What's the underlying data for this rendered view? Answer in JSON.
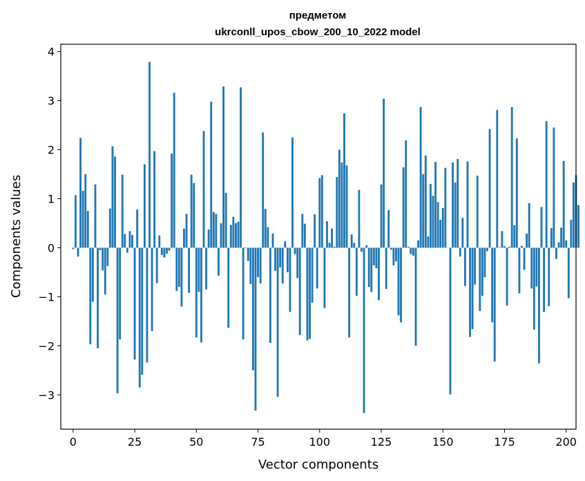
{
  "chart_data": {
    "type": "bar",
    "title": "предметом",
    "subtitle": "ukrconll_upos_cbow_200_10_2022 model",
    "xlabel": "Vector components",
    "ylabel": "Components values",
    "xlim": [
      -5,
      204
    ],
    "ylim": [
      -3.7,
      4.15
    ],
    "xticks": [
      0,
      25,
      50,
      75,
      100,
      125,
      150,
      175,
      200
    ],
    "xtick_labels": [
      "0",
      "25",
      "50",
      "75",
      "100",
      "125",
      "150",
      "175",
      "200"
    ],
    "yticks": [
      -3,
      -2,
      -1,
      0,
      1,
      2,
      3,
      4
    ],
    "ytick_labels": [
      "−3",
      "−2",
      "−1",
      "0",
      "1",
      "2",
      "3",
      "4"
    ],
    "bar_color": "#1f77b4",
    "values": [
      -0.03,
      1.07,
      -0.18,
      2.24,
      1.16,
      1.5,
      0.75,
      -1.97,
      -1.1,
      1.29,
      -2.05,
      -0.05,
      -0.46,
      -0.95,
      -0.37,
      0.8,
      2.07,
      1.86,
      -2.97,
      -1.87,
      1.49,
      0.28,
      -0.1,
      0.34,
      0.26,
      -2.28,
      0.78,
      -2.85,
      -2.59,
      1.7,
      -2.34,
      3.79,
      -1.7,
      1.97,
      -0.72,
      0.25,
      -0.15,
      -0.2,
      -0.12,
      -0.06,
      1.92,
      3.16,
      -0.88,
      -0.8,
      -1.2,
      0.39,
      0.69,
      -0.92,
      1.49,
      1.32,
      -1.83,
      -0.9,
      -1.93,
      2.38,
      -0.85,
      0.37,
      2.98,
      0.73,
      0.69,
      -0.57,
      0.5,
      3.29,
      1.12,
      -1.63,
      0.46,
      0.63,
      0.5,
      0.53,
      3.27,
      -1.87,
      -0.01,
      -0.27,
      -0.74,
      -2.5,
      -3.32,
      -0.6,
      -0.73,
      2.35,
      0.79,
      0.42,
      -1.94,
      0.29,
      -0.47,
      -3.04,
      -0.4,
      -0.73,
      0.13,
      -0.5,
      -1.31,
      2.25,
      -0.13,
      -0.62,
      -1.78,
      0.69,
      0.49,
      -1.89,
      -1.86,
      -1.12,
      0.68,
      -0.83,
      1.42,
      1.48,
      -1.23,
      0.54,
      0.1,
      0.39,
      0.02,
      1.44,
      2.0,
      1.74,
      2.74,
      1.68,
      -1.83,
      0.27,
      0.1,
      -0.98,
      1.18,
      -0.08,
      -3.37,
      0.05,
      -0.8,
      -0.9,
      -0.36,
      -0.42,
      -1.07,
      1.29,
      3.04,
      -0.84,
      0.77,
      -0.04,
      -0.36,
      -0.28,
      -1.38,
      -1.52,
      1.64,
      2.19,
      0.02,
      -0.13,
      -0.16,
      -2.0,
      0.15,
      2.87,
      1.5,
      1.88,
      0.23,
      1.3,
      1.06,
      1.75,
      0.93,
      0.57,
      0.81,
      1.63,
      0.0,
      -2.99,
      1.74,
      1.33,
      1.81,
      -0.18,
      0.61,
      -0.78,
      1.76,
      -1.82,
      -1.66,
      -0.75,
      1.47,
      -1.29,
      -0.98,
      -0.6,
      -0.07,
      2.42,
      -1.52,
      -2.32,
      2.81,
      0.01,
      0.34,
      0.03,
      -1.18,
      0.02,
      2.87,
      0.46,
      2.23,
      -0.93,
      0.04,
      -0.45,
      0.29,
      0.91,
      -0.83,
      -1.67,
      -0.79,
      -2.36,
      0.83,
      -1.31,
      2.58,
      -1.19,
      0.4,
      2.45,
      -0.23,
      0.11,
      0.41,
      1.77,
      0.15,
      -1.03,
      0.57,
      1.33,
      1.48,
      0.87
    ]
  }
}
